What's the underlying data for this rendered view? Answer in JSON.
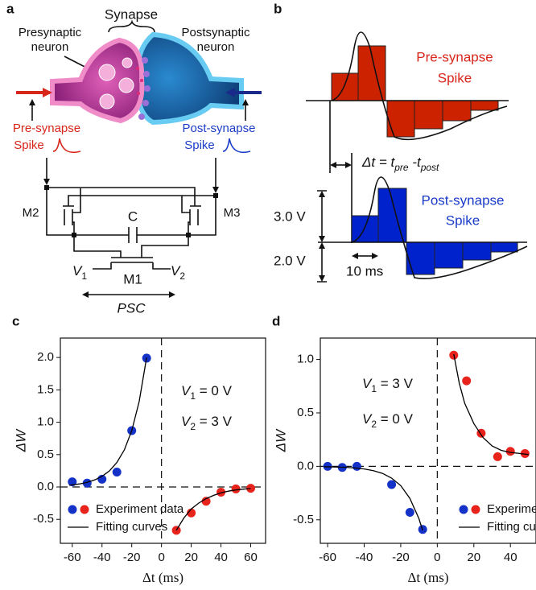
{
  "panel_a": {
    "label": "a",
    "synapse": "Synapse",
    "presynaptic": [
      "Presynaptic",
      "neuron"
    ],
    "postsynaptic": [
      "Postsynaptic",
      "neuron"
    ],
    "pre_spike": [
      "Pre-synapse",
      "Spike"
    ],
    "post_spike": [
      "Post-synapse",
      "Spike"
    ],
    "m2": "M2",
    "m3": "M3",
    "capacitor": "C",
    "m1": "M1",
    "v1": {
      "text": "V",
      "sub": "1"
    },
    "v2": {
      "text": "V",
      "sub": "2"
    },
    "psc": "PSC"
  },
  "panel_b": {
    "label": "b",
    "pre_spike": [
      "Pre-synapse",
      "Spike"
    ],
    "post_spike": [
      "Post-synapse",
      "Spike"
    ],
    "delta_t": {
      "lhs": "Δt = t",
      "sub1": "pre",
      "mid": " -t",
      "sub2": "post"
    },
    "amp_top": "3.0 V",
    "amp_bottom": "2.0 V",
    "width": "10 ms"
  },
  "chart_data": [
    {
      "type": "scatter",
      "panel_label": "c",
      "x_label": "Δt (ms)",
      "y_label": "ΔW",
      "xlim": [
        -68,
        70
      ],
      "ylim": [
        -0.87,
        2.3
      ],
      "xticks": [
        -60,
        -40,
        -20,
        0,
        20,
        40,
        60
      ],
      "yticks": [
        {
          "value": -0.5,
          "label": "-0.5"
        },
        {
          "value": 0,
          "label": "0.0"
        },
        {
          "value": 0.5,
          "label": "0.5"
        },
        {
          "value": 1,
          "label": "1.0"
        },
        {
          "value": 1.5,
          "label": "1.5"
        },
        {
          "value": 2,
          "label": "2.0"
        }
      ],
      "legend": "lower left",
      "annotations": [
        {
          "text": "V",
          "sub": "1",
          "rest": " = 0 V"
        },
        {
          "text": "V",
          "sub": "2",
          "rest": " = 3 V"
        }
      ],
      "series": [
        {
          "name": "Experiment data",
          "color": "#1432c8",
          "x": [
            -60,
            -50,
            -40,
            -30,
            -20,
            -10
          ],
          "values": [
            0.08,
            0.06,
            0.12,
            0.23,
            0.87,
            1.99
          ]
        },
        {
          "color": "#e8231c",
          "x": [
            10,
            20,
            30,
            40,
            50,
            60
          ],
          "values": [
            -0.67,
            -0.4,
            -0.22,
            -0.08,
            -0.03,
            -0.02
          ]
        },
        {
          "name": "Fitting curves",
          "color": "#000000",
          "type": "line",
          "x": [
            -62,
            -55,
            -50,
            -45,
            -40,
            -35,
            -30,
            -25,
            -20,
            -15,
            -10,
            null,
            10,
            15,
            20,
            25,
            30,
            35,
            40,
            45,
            50,
            55,
            60
          ],
          "values": [
            0.026,
            0.047,
            0.071,
            0.108,
            0.164,
            0.249,
            0.378,
            0.573,
            0.869,
            1.318,
            2.0,
            null,
            -0.67,
            -0.48,
            -0.34,
            -0.25,
            -0.18,
            -0.13,
            -0.09,
            -0.065,
            -0.046,
            -0.033,
            -0.024
          ]
        }
      ]
    },
    {
      "type": "scatter",
      "panel_label": "d",
      "x_label": "Δt (ms)",
      "y_label": "ΔW",
      "xlim": [
        -64,
        54
      ],
      "ylim": [
        -0.72,
        1.2
      ],
      "xticks": [
        -60,
        -40,
        -20,
        0,
        20,
        40
      ],
      "yticks": [
        {
          "value": -0.5,
          "label": "-0.5"
        },
        {
          "value": 0,
          "label": "0.0"
        },
        {
          "value": 0.5,
          "label": "0.5"
        },
        {
          "value": 1,
          "label": "1.0"
        }
      ],
      "legend": "lower right",
      "annotations": [
        {
          "text": "V",
          "sub": "1",
          "rest": " = 3 V"
        },
        {
          "text": "V",
          "sub": "2",
          "rest": " = 0 V"
        }
      ],
      "series": [
        {
          "name": "Experiment data",
          "color": "#1432c8",
          "x": [
            -60,
            -52,
            -44,
            -25,
            -15,
            -8
          ],
          "values": [
            0,
            -0.01,
            0,
            -0.17,
            -0.43,
            -0.59
          ]
        },
        {
          "color": "#e8231c",
          "x": [
            9,
            16,
            24,
            33,
            40,
            48
          ],
          "values": [
            1.04,
            0.8,
            0.31,
            0.09,
            0.14,
            0.12
          ]
        },
        {
          "name": "Fitting curves",
          "color": "#000000",
          "type": "line",
          "x": [
            -62,
            -55,
            -50,
            -45,
            -40,
            -35,
            -30,
            -25,
            -20,
            -15,
            -10,
            -8,
            null,
            9,
            12,
            15,
            20,
            25,
            30,
            35,
            40,
            45,
            50
          ],
          "values": [
            -0.003,
            -0.006,
            -0.009,
            -0.015,
            -0.024,
            -0.04,
            -0.066,
            -0.11,
            -0.18,
            -0.3,
            -0.49,
            -0.6,
            null,
            1.05,
            0.78,
            0.59,
            0.4,
            0.27,
            0.19,
            0.15,
            0.13,
            0.12,
            0.11
          ]
        }
      ]
    }
  ]
}
